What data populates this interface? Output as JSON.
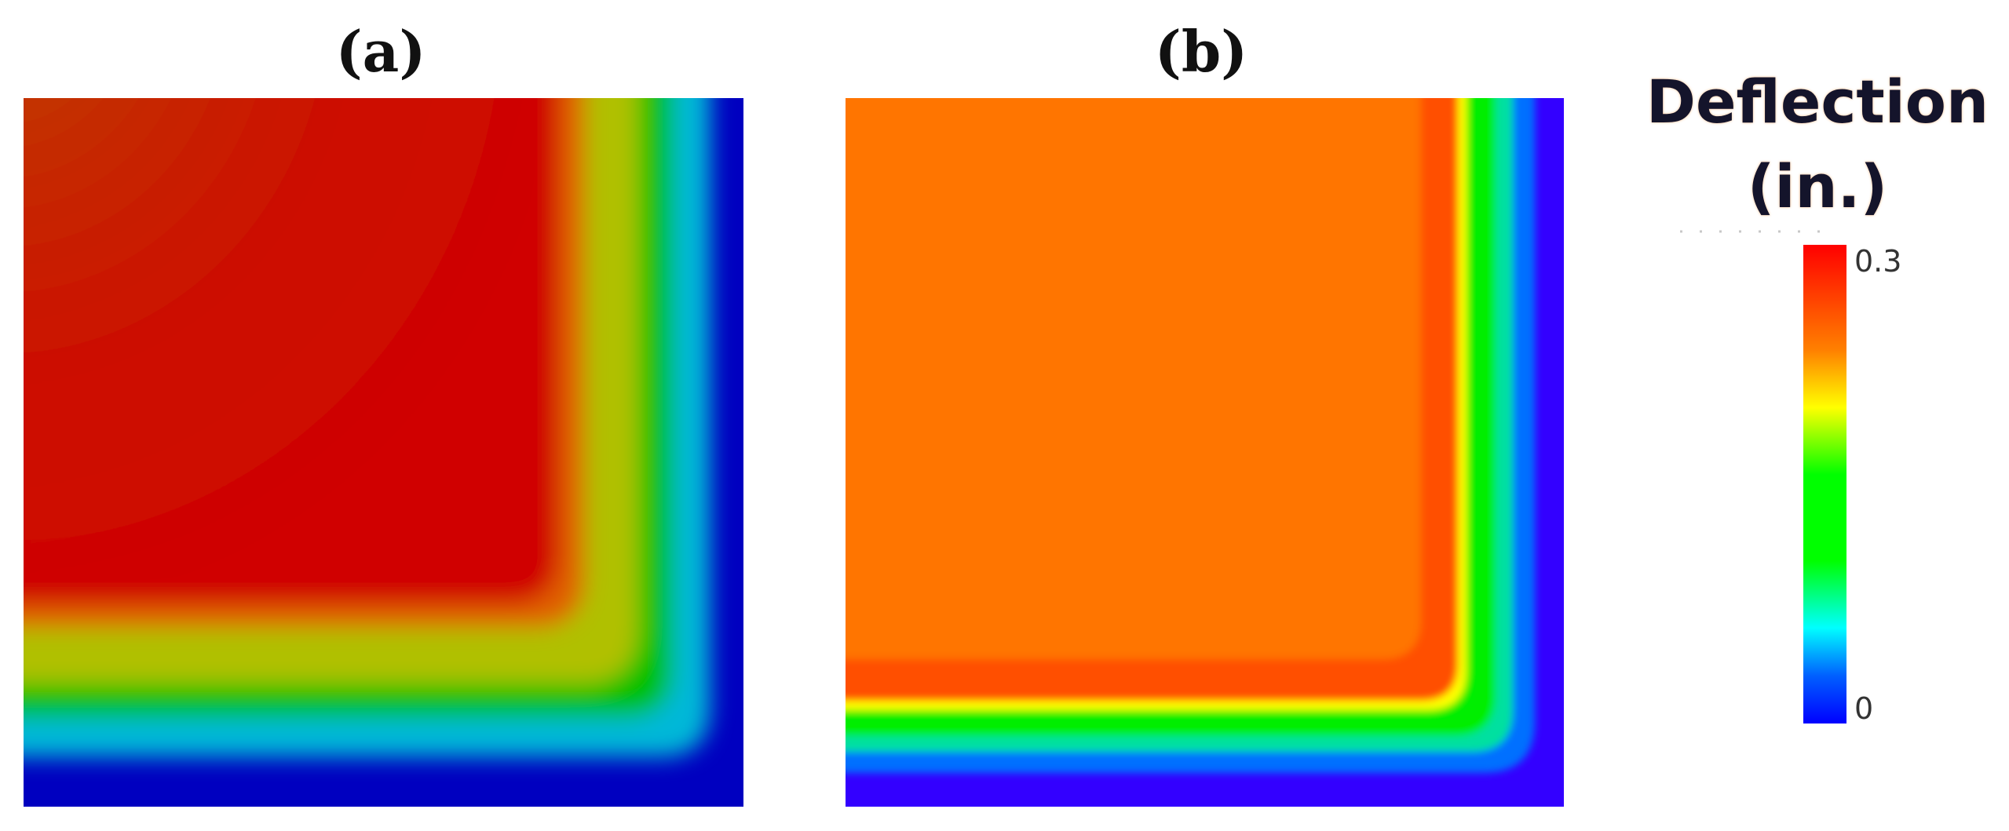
{
  "chart_data": [
    {
      "type": "heatmap",
      "panel": "(a)",
      "title": "",
      "xlabel": "",
      "ylabel": "",
      "colormap": [
        "#0000c0",
        "#00c0ff",
        "#00cc00",
        "#dddd00",
        "#ff8000",
        "#d40000"
      ],
      "plateau_color": "#cc1000",
      "description_values": {
        "interior_deflection": 0.3,
        "edge_deflection": 0.0
      }
    },
    {
      "type": "heatmap",
      "panel": "(b)",
      "title": "",
      "xlabel": "",
      "ylabel": "",
      "colormap": [
        "#3300ff",
        "#0070ff",
        "#00e070",
        "#00ee00",
        "#ffff00",
        "#ff6000"
      ],
      "plateau_color": "#ff7400",
      "description_values": {
        "interior_deflection": 0.3,
        "edge_deflection": 0.0
      }
    }
  ],
  "legend": {
    "title_line1": "Deflection",
    "title_line2": "(in.)",
    "max_label": "0.3",
    "min_label": "0",
    "range": [
      0,
      0.3
    ],
    "stops": [
      "#ff0000",
      "#ff8000",
      "#ffff00",
      "#00ff00",
      "#00ffff",
      "#0000ff"
    ]
  }
}
